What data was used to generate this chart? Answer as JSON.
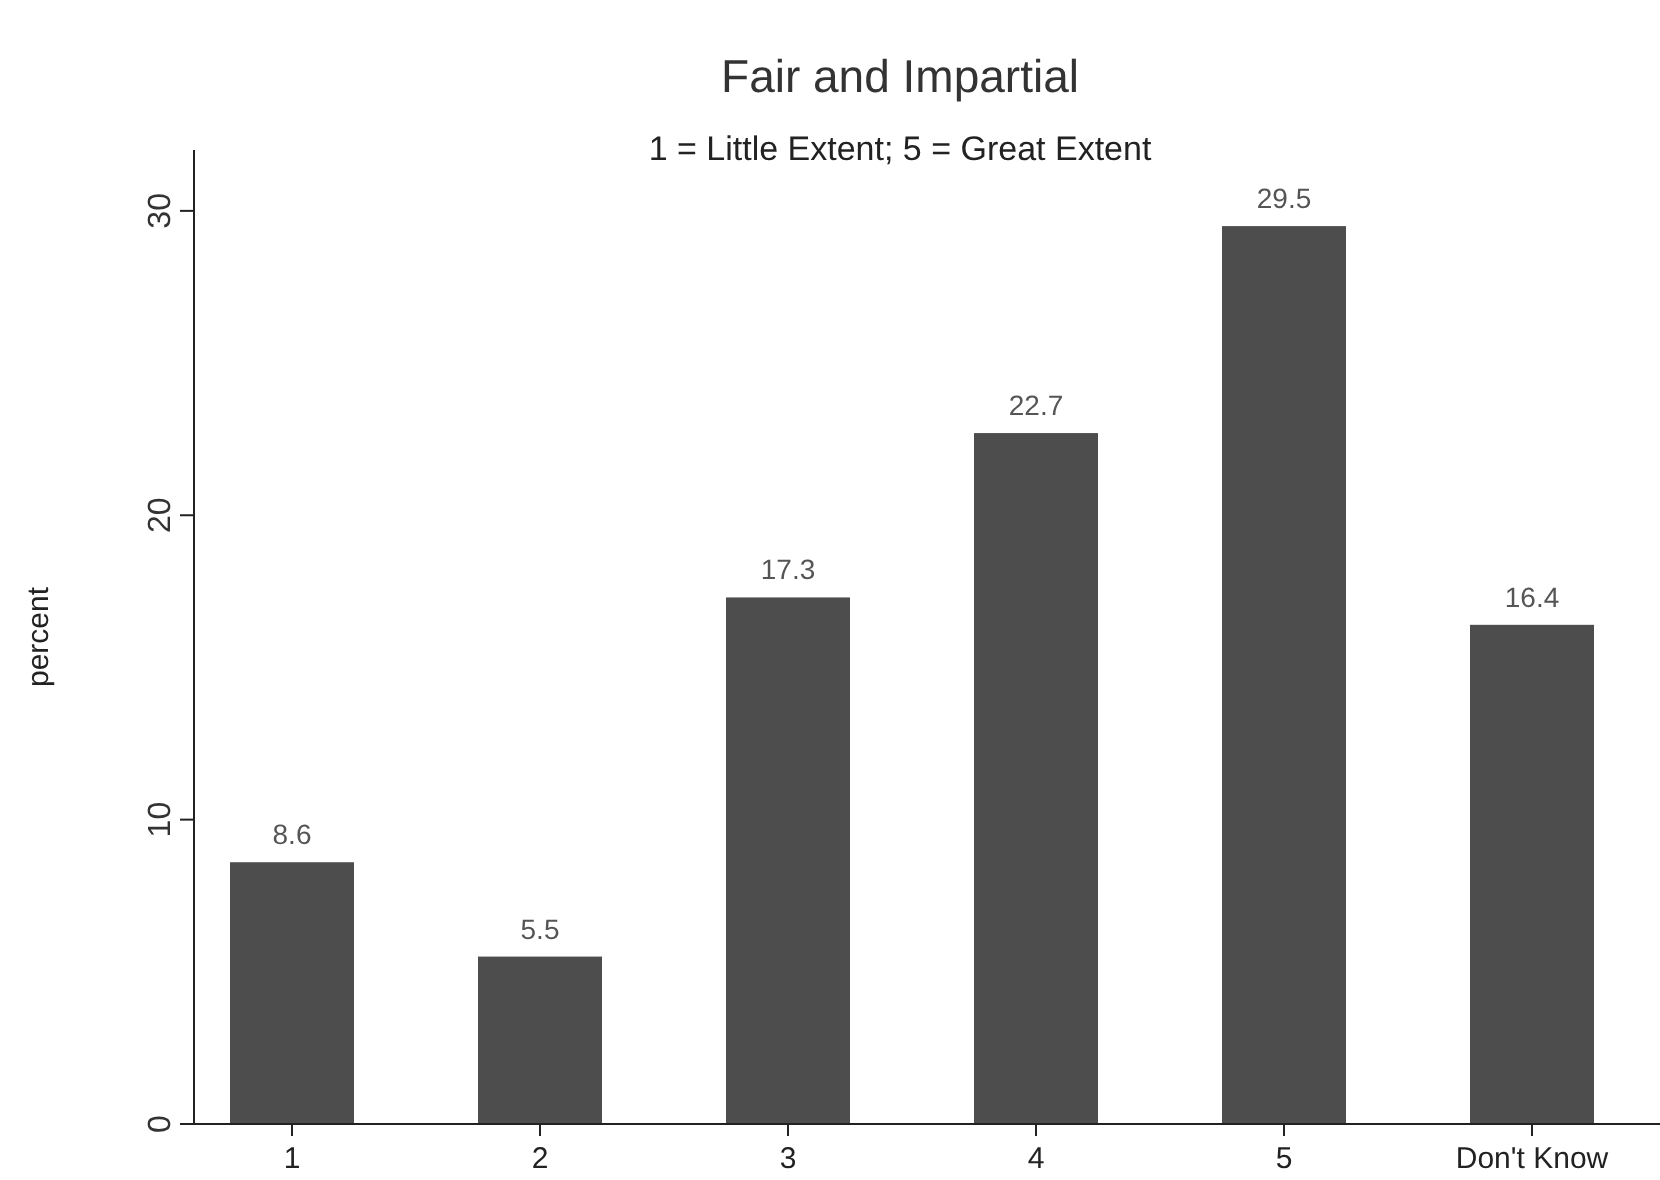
{
  "chart_data": {
    "type": "bar",
    "title": "Fair and Impartial",
    "subtitle": "1 = Little Extent; 5 = Great Extent",
    "ylabel": "percent",
    "categories": [
      "1",
      "2",
      "3",
      "4",
      "5",
      "Don't Know"
    ],
    "values": [
      8.6,
      5.5,
      17.3,
      22.7,
      29.5,
      16.4
    ],
    "color": "#4d4d4d",
    "ylim": [
      0,
      32
    ],
    "yticks": [
      0,
      10,
      20,
      30
    ],
    "data_labels": true,
    "grid": false
  }
}
